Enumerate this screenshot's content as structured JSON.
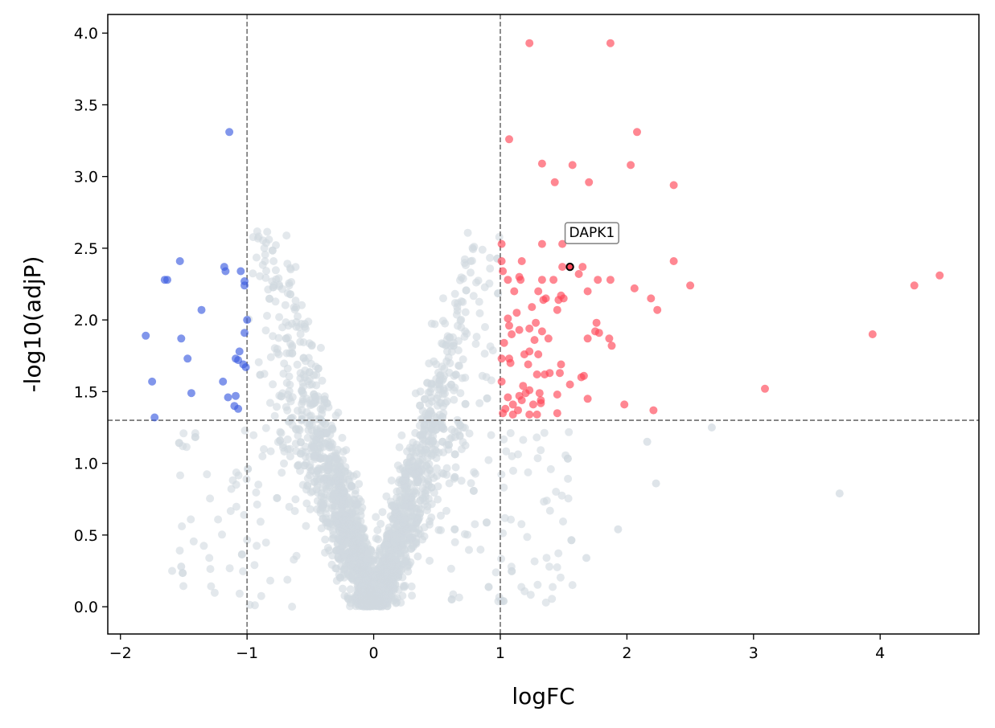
{
  "chart_data": {
    "type": "scatter",
    "title": "",
    "xlabel": "logFC",
    "ylabel": "-log10(adjP)",
    "xlim": [
      -2.1,
      4.78
    ],
    "ylim": [
      -0.19,
      4.13
    ],
    "xticks": [
      -2,
      -1,
      0,
      1,
      2,
      3,
      4
    ],
    "xtick_labels": [
      "−2",
      "−1",
      "0",
      "1",
      "2",
      "3",
      "4"
    ],
    "yticks": [
      0.0,
      0.5,
      1.0,
      1.5,
      2.0,
      2.5,
      3.0,
      3.5,
      4.0
    ],
    "ytick_labels": [
      "0.0",
      "0.5",
      "1.0",
      "1.5",
      "2.0",
      "2.5",
      "3.0",
      "3.5",
      "4.0"
    ],
    "thresholds": {
      "logFC": [
        -1,
        1
      ],
      "neg_log10_adjP": 1.3
    },
    "colors": {
      "up": "#ff4757",
      "down": "#3d5ee0",
      "ns": "#d0d8df",
      "threshold": "#808080"
    },
    "background_points": {
      "color": "#d0d8df",
      "description_count": 2200,
      "note": "non-significant genes, approximated",
      "seed": 7
    },
    "series": [
      {
        "name": "up",
        "color": "#ff4757",
        "points": [
          [
            1.23,
            3.93
          ],
          [
            1.87,
            3.93
          ],
          [
            2.08,
            3.31
          ],
          [
            1.07,
            3.26
          ],
          [
            1.33,
            3.09
          ],
          [
            1.57,
            3.08
          ],
          [
            2.03,
            3.08
          ],
          [
            1.43,
            2.96
          ],
          [
            1.7,
            2.96
          ],
          [
            2.37,
            2.94
          ],
          [
            1.01,
            2.53
          ],
          [
            1.33,
            2.53
          ],
          [
            1.49,
            2.53
          ],
          [
            1.01,
            2.41
          ],
          [
            1.17,
            2.41
          ],
          [
            2.37,
            2.41
          ],
          [
            1.49,
            2.37
          ],
          [
            1.65,
            2.37
          ],
          [
            1.02,
            2.34
          ],
          [
            1.62,
            2.32
          ],
          [
            1.15,
            2.3
          ],
          [
            1.87,
            2.28
          ],
          [
            1.06,
            2.28
          ],
          [
            1.16,
            2.28
          ],
          [
            1.33,
            2.28
          ],
          [
            1.42,
            2.28
          ],
          [
            1.77,
            2.28
          ],
          [
            2.5,
            2.24
          ],
          [
            4.27,
            2.24
          ],
          [
            4.47,
            2.31
          ],
          [
            2.06,
            2.22
          ],
          [
            1.11,
            2.2
          ],
          [
            1.3,
            2.2
          ],
          [
            1.69,
            2.2
          ],
          [
            1.36,
            2.15
          ],
          [
            1.5,
            2.15
          ],
          [
            1.48,
            2.17
          ],
          [
            2.19,
            2.15
          ],
          [
            1.34,
            2.14
          ],
          [
            1.46,
            2.14
          ],
          [
            1.25,
            2.09
          ],
          [
            1.45,
            2.07
          ],
          [
            2.24,
            2.07
          ],
          [
            1.13,
            2.05
          ],
          [
            1.06,
            2.01
          ],
          [
            1.28,
            1.98
          ],
          [
            1.76,
            1.98
          ],
          [
            1.07,
            1.96
          ],
          [
            1.23,
            1.94
          ],
          [
            1.15,
            1.93
          ],
          [
            1.33,
            1.92
          ],
          [
            1.75,
            1.92
          ],
          [
            1.78,
            1.91
          ],
          [
            1.09,
            1.9
          ],
          [
            3.94,
            1.9
          ],
          [
            1.86,
            1.87
          ],
          [
            1.69,
            1.87
          ],
          [
            1.27,
            1.86
          ],
          [
            1.38,
            1.87
          ],
          [
            1.03,
            1.84
          ],
          [
            1.88,
            1.82
          ],
          [
            1.23,
            1.78
          ],
          [
            1.19,
            1.76
          ],
          [
            1.3,
            1.76
          ],
          [
            1.01,
            1.73
          ],
          [
            1.07,
            1.73
          ],
          [
            1.08,
            1.7
          ],
          [
            1.22,
            1.69
          ],
          [
            1.48,
            1.69
          ],
          [
            1.47,
            1.63
          ],
          [
            1.29,
            1.62
          ],
          [
            1.35,
            1.62
          ],
          [
            1.39,
            1.63
          ],
          [
            1.64,
            1.6
          ],
          [
            1.66,
            1.61
          ],
          [
            1.01,
            1.57
          ],
          [
            1.55,
            1.55
          ],
          [
            1.18,
            1.54
          ],
          [
            1.23,
            1.51
          ],
          [
            1.2,
            1.49
          ],
          [
            1.31,
            1.49
          ],
          [
            1.15,
            1.47
          ],
          [
            1.06,
            1.46
          ],
          [
            1.45,
            1.48
          ],
          [
            1.17,
            1.44
          ],
          [
            1.32,
            1.44
          ],
          [
            1.69,
            1.45
          ],
          [
            1.1,
            1.41
          ],
          [
            1.26,
            1.41
          ],
          [
            1.98,
            1.41
          ],
          [
            1.04,
            1.38
          ],
          [
            1.14,
            1.37
          ],
          [
            2.21,
            1.37
          ],
          [
            1.02,
            1.35
          ],
          [
            1.1,
            1.34
          ],
          [
            1.23,
            1.34
          ],
          [
            1.29,
            1.34
          ],
          [
            1.45,
            1.35
          ],
          [
            3.09,
            1.52
          ],
          [
            1.32,
            1.42
          ]
        ]
      },
      {
        "name": "down",
        "color": "#3d5ee0",
        "points": [
          [
            -1.14,
            3.31
          ],
          [
            -1.53,
            2.41
          ],
          [
            -1.18,
            2.37
          ],
          [
            -1.17,
            2.34
          ],
          [
            -1.05,
            2.34
          ],
          [
            -1.65,
            2.28
          ],
          [
            -1.63,
            2.28
          ],
          [
            -1.02,
            2.27
          ],
          [
            -1.02,
            2.24
          ],
          [
            -1.36,
            2.07
          ],
          [
            -1.0,
            2.0
          ],
          [
            -1.02,
            1.91
          ],
          [
            -1.8,
            1.89
          ],
          [
            -1.52,
            1.87
          ],
          [
            -1.06,
            1.78
          ],
          [
            -1.47,
            1.73
          ],
          [
            -1.09,
            1.73
          ],
          [
            -1.07,
            1.72
          ],
          [
            -1.03,
            1.69
          ],
          [
            -1.01,
            1.67
          ],
          [
            -1.75,
            1.57
          ],
          [
            -1.19,
            1.57
          ],
          [
            -1.44,
            1.49
          ],
          [
            -1.09,
            1.47
          ],
          [
            -1.15,
            1.46
          ],
          [
            -1.1,
            1.4
          ],
          [
            -1.07,
            1.38
          ],
          [
            -1.73,
            1.32
          ]
        ]
      }
    ],
    "highlight": {
      "label": "DAPK1",
      "x": 1.55,
      "y": 2.37
    }
  }
}
